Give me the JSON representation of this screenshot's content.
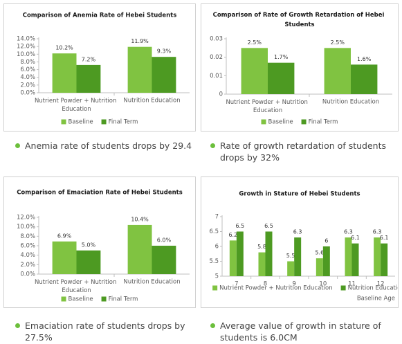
{
  "chart_data": [
    {
      "type": "bar",
      "title": "Comparison of Anemia Rate of Hebei Students",
      "categories": [
        "Nutrient Powder + Nutrition Education",
        "Nutrition Education"
      ],
      "series": [
        {
          "name": "Baseline",
          "color": "#80c341",
          "values": [
            10.2,
            11.9
          ],
          "value_labels": [
            "10.2%",
            "11.9%"
          ]
        },
        {
          "name": "Final Term",
          "color": "#4d9a22",
          "values": [
            7.2,
            9.3
          ],
          "value_labels": [
            "7.2%",
            "9.3%"
          ]
        }
      ],
      "ylim": [
        0,
        14
      ],
      "yticks": [
        {
          "value": 0,
          "label": "0.0%"
        },
        {
          "value": 2,
          "label": "2.0%"
        },
        {
          "value": 4,
          "label": "4.0%"
        },
        {
          "value": 6,
          "label": "6.0%"
        },
        {
          "value": 8,
          "label": "8.0%"
        },
        {
          "value": 10,
          "label": "10.0%"
        },
        {
          "value": 12,
          "label": "12.0%"
        },
        {
          "value": 14,
          "label": "14.0%"
        }
      ],
      "grid": false,
      "legend": "bottom",
      "caption": "Anemia rate of students drops by 29.4"
    },
    {
      "type": "bar",
      "title": "Comparison of Rate of Growth Retardation of Hebei Students",
      "categories": [
        "Nutrient Powder + Nutrition Education",
        "Nutrition Education"
      ],
      "series": [
        {
          "name": "Baseline",
          "color": "#80c341",
          "values": [
            0.025,
            0.025
          ],
          "value_labels": [
            "2.5%",
            "2.5%"
          ]
        },
        {
          "name": "Final Term",
          "color": "#4d9a22",
          "values": [
            0.017,
            0.016
          ],
          "value_labels": [
            "1.7%",
            "1.6%"
          ]
        }
      ],
      "ylim": [
        0,
        0.03
      ],
      "yticks": [
        0,
        0.01,
        0.02,
        0.03
      ],
      "grid": false,
      "legend": "bottom",
      "caption": "Rate of growth retardation of students drops by 32%"
    },
    {
      "type": "bar",
      "title": "Comparison of Emaciation Rate of Hebei Students",
      "categories": [
        "Nutrient Powder + Nutrition Education",
        "Nutrition Education"
      ],
      "series": [
        {
          "name": "Baseline",
          "color": "#80c341",
          "values": [
            6.9,
            10.4
          ],
          "value_labels": [
            "6.9%",
            "10.4%"
          ]
        },
        {
          "name": "Final Term",
          "color": "#4d9a22",
          "values": [
            5.0,
            6.0
          ],
          "value_labels": [
            "5.0%",
            "6.0%"
          ]
        }
      ],
      "ylim": [
        0,
        12
      ],
      "yticks": [
        {
          "value": 0,
          "label": "0.0%"
        },
        {
          "value": 2,
          "label": "2.0%"
        },
        {
          "value": 4,
          "label": "4.0%"
        },
        {
          "value": 6,
          "label": "6.0%"
        },
        {
          "value": 8,
          "label": "8.0%"
        },
        {
          "value": 10,
          "label": "10.0%"
        },
        {
          "value": 12,
          "label": "12.0%"
        }
      ],
      "grid": false,
      "legend": "bottom",
      "caption": "Emaciation rate of students drops by 27.5%"
    },
    {
      "type": "bar",
      "title": "Growth in Stature of Hebei Students",
      "categories": [
        "7",
        "8",
        "9",
        "10",
        "11",
        "12"
      ],
      "x_label": "Baseline Age",
      "series": [
        {
          "name": "Nutrient Powder + Nutrition Education",
          "color": "#80c341",
          "values": [
            6.2,
            5.8,
            5.5,
            5.6,
            6.3,
            6.3
          ]
        },
        {
          "name": "Nutrition Education",
          "color": "#4d9a22",
          "values": [
            6.5,
            6.5,
            6.3,
            6,
            6.1,
            6.1
          ]
        }
      ],
      "ylim": [
        5,
        7
      ],
      "yticks": [
        5,
        5.5,
        6,
        6.5,
        7
      ],
      "grid": false,
      "legend": "bottom",
      "caption": "Average value of growth in stature of students is 6.0CM"
    }
  ]
}
